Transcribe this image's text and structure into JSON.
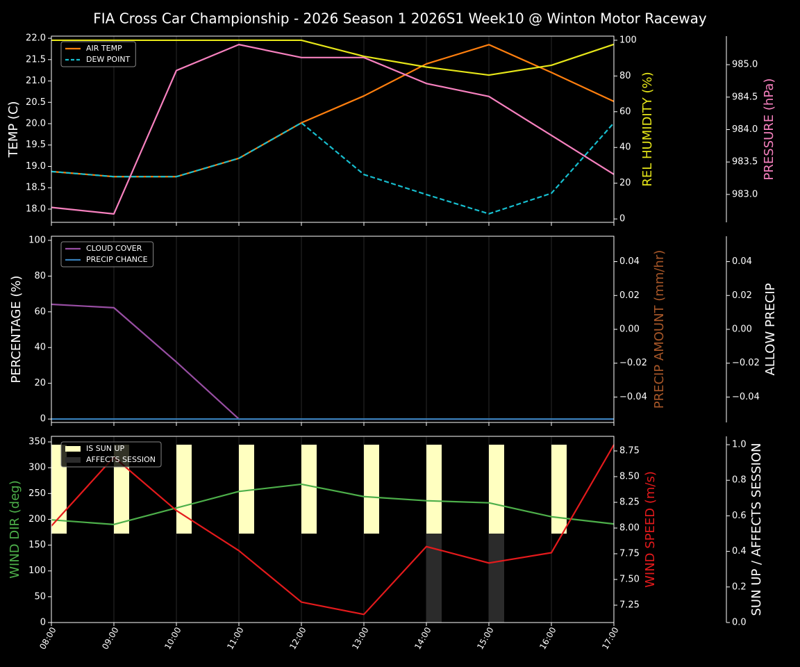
{
  "title": "FIA Cross Car Championship - 2026 Season 1 2026S1 Week10 @ Winton Motor Raceway",
  "chart_data": [
    {
      "type": "line",
      "ylabel": "TEMP (C)",
      "ylabel_color": "#ffffff",
      "y2label": "REL HUMIDITY (%)",
      "y2label_color": "#e6e619",
      "y3label": "PRESSURE (hPa)",
      "y3label_color": "#f781bf",
      "ylim": [
        17.69,
        22.05
      ],
      "yticks": [
        {
          "value": 18,
          "label": "18.0"
        },
        18.5,
        {
          "value": 19,
          "label": "19.0"
        },
        19.5,
        {
          "value": 20,
          "label": "20.0"
        },
        20.5,
        {
          "value": 21,
          "label": "21.0"
        },
        21.5,
        {
          "value": 22,
          "label": "22.0"
        }
      ],
      "y2lim": [
        -1.9,
        102.3
      ],
      "y2ticks": [
        0,
        20,
        40,
        60,
        80,
        100
      ],
      "y3lim": [
        982.57,
        985.44
      ],
      "y3ticks": [
        {
          "value": 983,
          "label": "983.0"
        },
        983.5,
        {
          "value": 984,
          "label": "984.0"
        },
        984.5,
        {
          "value": 985,
          "label": "985.0"
        }
      ],
      "xgrid": true,
      "legend": "upper left",
      "series": [
        {
          "name": "AIR TEMP",
          "color": "#ff7f0e",
          "axis": "y",
          "values": [
            18.88,
            18.76,
            18.76,
            19.19,
            20.02,
            20.65,
            21.4,
            21.85,
            21.2,
            20.52
          ]
        },
        {
          "name": "DEW POINT",
          "color": "#17becf",
          "axis": "y",
          "dash": true,
          "values": [
            18.88,
            18.76,
            18.76,
            19.19,
            20.02,
            18.81,
            18.34,
            17.89,
            18.37,
            20.02
          ]
        },
        {
          "color": "#e6e619",
          "axis": "y2",
          "values": [
            100,
            100,
            100,
            100,
            100,
            91,
            85,
            80.5,
            86,
            97.7
          ]
        },
        {
          "color": "#f781bf",
          "axis": "y3",
          "values": [
            982.8,
            982.7,
            984.91,
            985.31,
            985.11,
            985.11,
            984.71,
            984.51,
            983.91,
            983.31
          ]
        }
      ]
    },
    {
      "type": "line",
      "ylabel": "PERCENTAGE (%)",
      "ylabel_color": "#ffffff",
      "y2label": "PRECIP AMOUNT (mm/hr)",
      "y2label_color": "#a65628",
      "y3label": "ALLOW PRECIP",
      "y3label_color": "#ffffff",
      "ylim": [
        -1.9,
        102.3
      ],
      "yticks": [
        0,
        20,
        40,
        60,
        80,
        100
      ],
      "y2lim": [
        -0.055,
        0.055
      ],
      "y2ticks": [
        {
          "value": -0.04,
          "label": "−0.04"
        },
        {
          "value": -0.02,
          "label": "−0.02"
        },
        {
          "value": 0,
          "label": "0.00"
        },
        0.02,
        0.04
      ],
      "y3lim": [
        -0.055,
        0.055
      ],
      "y3ticks": [
        {
          "value": -0.04,
          "label": "−0.04"
        },
        {
          "value": -0.02,
          "label": "−0.02"
        },
        {
          "value": 0,
          "label": "0.00"
        },
        0.02,
        0.04
      ],
      "xgrid": true,
      "legend": "upper left",
      "series": [
        {
          "name": "CLOUD COVER",
          "color": "#984ea3",
          "axis": "y",
          "values": [
            64.2,
            62.3,
            31.9,
            0,
            0,
            0,
            0,
            0,
            0,
            0
          ]
        },
        {
          "name": "PRECIP CHANCE",
          "color": "#377eb8",
          "axis": "y",
          "values": [
            0,
            0,
            0,
            0,
            0,
            0,
            0,
            0,
            0,
            0
          ]
        }
      ]
    },
    {
      "type": "combo",
      "categories": [
        "08:00",
        "09:00",
        "10:00",
        "11:00",
        "12:00",
        "13:00",
        "14:00",
        "15:00",
        "16:00",
        "17:00"
      ],
      "ylabel": "WIND DIR (deg)",
      "ylabel_color": "#4daf4a",
      "y2label": "WIND SPEED (m/s)",
      "y2label_color": "#e41a1c",
      "y3label": "SUN UP / AFFECTS SESSION",
      "y3label_color": "#ffffff",
      "ylim": [
        0,
        360.8
      ],
      "yticks": [
        0,
        50,
        100,
        150,
        200,
        250,
        300,
        350
      ],
      "y2lim": [
        7.081,
        8.892
      ],
      "y2ticks": [
        7.25,
        {
          "value": 7.5,
          "label": "7.50"
        },
        7.75,
        {
          "value": 8,
          "label": "8.00"
        },
        8.25,
        {
          "value": 8.5,
          "label": "8.50"
        },
        8.75
      ],
      "y3lim": [
        0,
        1.047
      ],
      "y3ticks": [
        {
          "value": 0,
          "label": "0.0"
        },
        0.2,
        0.4,
        0.6,
        0.8,
        {
          "value": 1,
          "label": "1.0"
        }
      ],
      "xgrid": true,
      "legend": "upper left",
      "series": [
        {
          "name": "IS SUN UP",
          "kind": "bar",
          "base": 0.5,
          "color": "#ffffc0",
          "axis": "y3",
          "values": [
            1,
            1,
            1,
            1,
            1,
            1,
            1,
            1,
            1,
            null
          ]
        },
        {
          "name": "AFFECTS SESSION",
          "kind": "bar",
          "base": 0,
          "color": "#2b2b2b",
          "axis": "y3",
          "values": [
            0,
            0,
            0,
            0,
            0,
            0,
            0.5,
            0.5,
            0,
            0
          ]
        },
        {
          "color": "#4daf4a",
          "axis": "y",
          "values": [
            199,
            190,
            222,
            254,
            268,
            244,
            236,
            232,
            205,
            191
          ]
        },
        {
          "color": "#e41a1c",
          "axis": "y2",
          "values": [
            8.02,
            8.69,
            8.17,
            7.78,
            7.28,
            7.16,
            7.82,
            7.66,
            7.76,
            8.81
          ]
        }
      ]
    }
  ]
}
